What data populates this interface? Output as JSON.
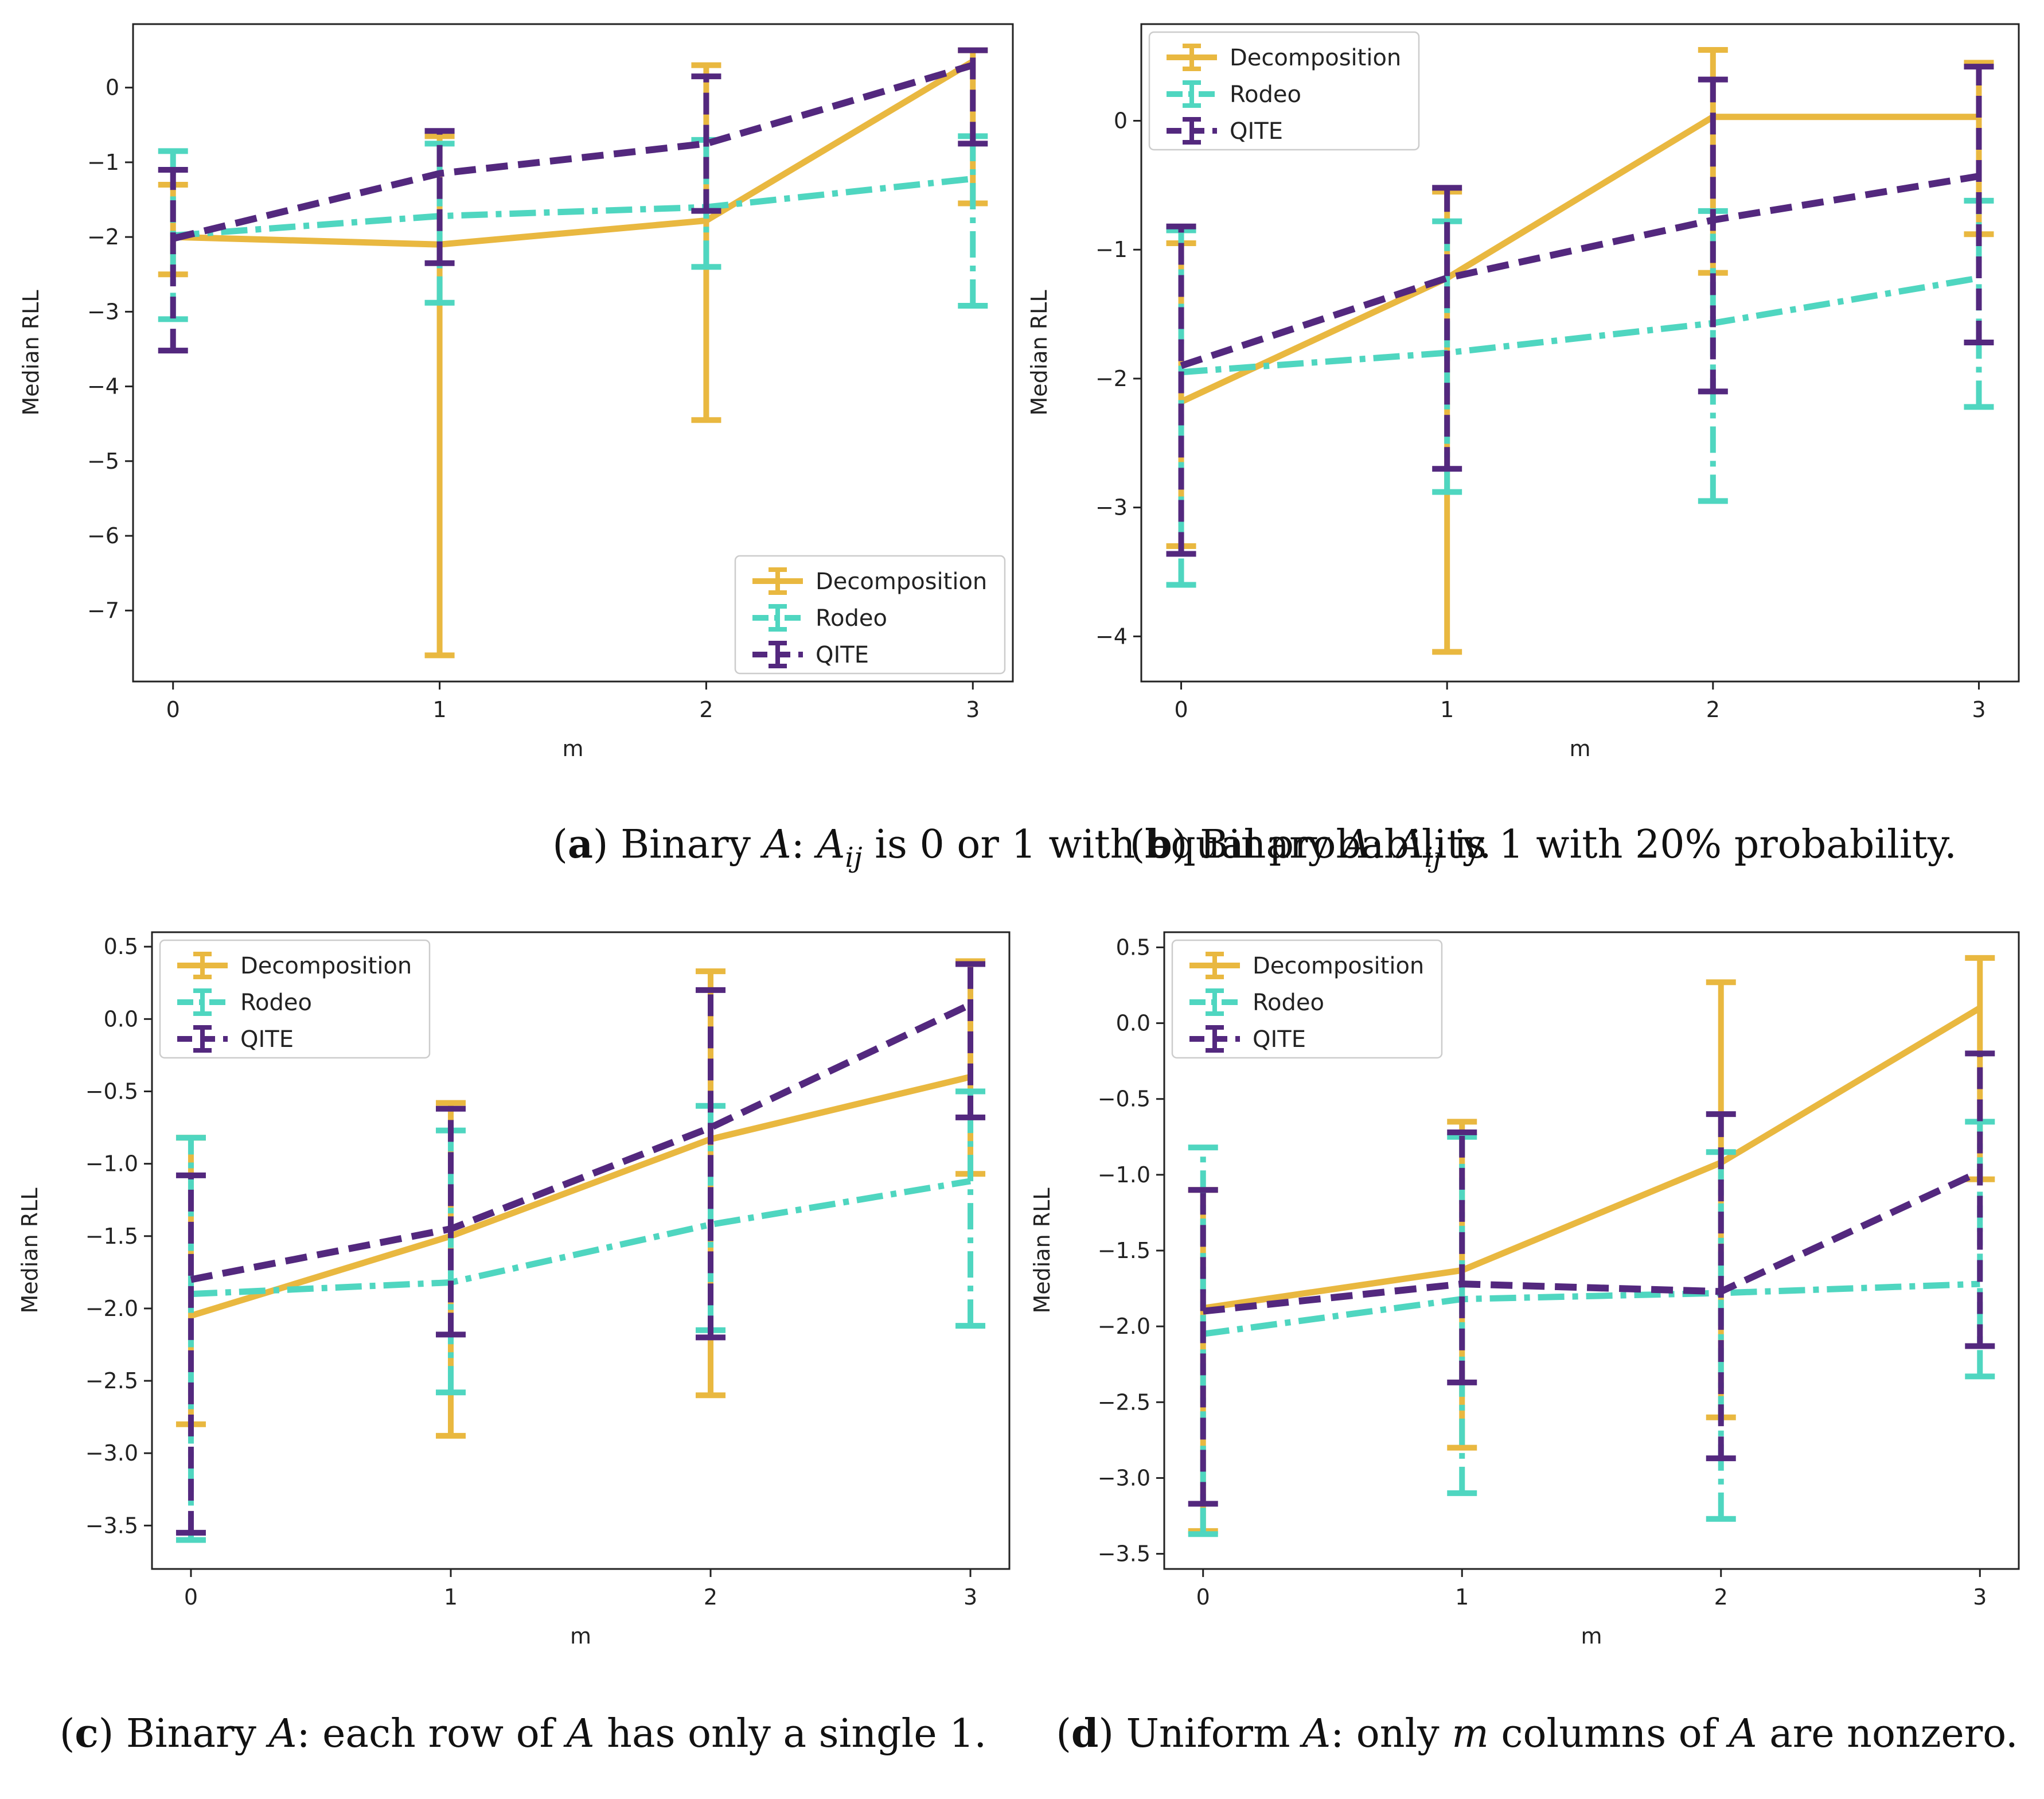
{
  "colors": {
    "Decomposition": "#E9B840",
    "Rodeo": "#4FD6C0",
    "QITE": "#53287E"
  },
  "legend_labels": [
    "Decomposition",
    "Rodeo",
    "QITE"
  ],
  "chart_data": [
    {
      "id": "a",
      "type": "line",
      "xlabel": "m",
      "ylabel": "Median RLL",
      "x": [
        0,
        1,
        2,
        3
      ],
      "xticks": [
        "0",
        "1",
        "2",
        "3"
      ],
      "ylim": [
        -7.95,
        0.85
      ],
      "yticks": [
        0,
        -1,
        -2,
        -3,
        -4,
        -5,
        -6,
        -7
      ],
      "ytick_labels": [
        "0",
        "−1",
        "−2",
        "−3",
        "−4",
        "−5",
        "−6",
        "−7"
      ],
      "legend_loc": "lower-right",
      "series": [
        {
          "name": "Decomposition",
          "values": [
            -2.0,
            -2.1,
            -1.78,
            0.35
          ],
          "low": [
            -2.5,
            -7.6,
            -4.45,
            -1.55
          ],
          "high": [
            -1.3,
            -0.65,
            0.3,
            0.5
          ]
        },
        {
          "name": "Rodeo",
          "values": [
            -1.98,
            -1.72,
            -1.6,
            -1.22
          ],
          "low": [
            -3.1,
            -2.88,
            -2.4,
            -2.92
          ],
          "high": [
            -0.85,
            -0.75,
            -0.7,
            -0.65
          ]
        },
        {
          "name": "QITE",
          "values": [
            -2.02,
            -1.15,
            -0.75,
            0.3
          ],
          "low": [
            -3.52,
            -2.35,
            -1.65,
            -0.75
          ],
          "high": [
            -1.1,
            -0.58,
            0.15,
            0.5
          ]
        }
      ],
      "caption": {
        "letter": "a",
        "pre": " Binary ",
        "var": "A",
        "mid": ": ",
        "var2": "A",
        "sub": "ij",
        "post": " is 0 or 1 with equal probability."
      }
    },
    {
      "id": "b",
      "type": "line",
      "xlabel": "m",
      "ylabel": "Median RLL",
      "x": [
        0,
        1,
        2,
        3
      ],
      "xticks": [
        "0",
        "1",
        "2",
        "3"
      ],
      "ylim": [
        -4.35,
        0.75
      ],
      "yticks": [
        0,
        -1,
        -2,
        -3,
        -4
      ],
      "ytick_labels": [
        "0",
        "−1",
        "−2",
        "−3",
        "−4"
      ],
      "legend_loc": "upper-left",
      "series": [
        {
          "name": "Decomposition",
          "values": [
            -2.18,
            -1.22,
            0.03,
            0.03
          ],
          "low": [
            -3.3,
            -4.12,
            -1.18,
            -0.88
          ],
          "high": [
            -0.95,
            -0.55,
            0.55,
            0.45
          ]
        },
        {
          "name": "Rodeo",
          "values": [
            -1.95,
            -1.8,
            -1.57,
            -1.22
          ],
          "low": [
            -3.6,
            -2.88,
            -2.95,
            -2.22
          ],
          "high": [
            -0.85,
            -0.78,
            -0.7,
            -0.62
          ]
        },
        {
          "name": "QITE",
          "values": [
            -1.9,
            -1.22,
            -0.77,
            -0.43
          ],
          "low": [
            -3.36,
            -2.7,
            -2.1,
            -1.72
          ],
          "high": [
            -0.82,
            -0.52,
            0.32,
            0.42
          ]
        }
      ],
      "caption": {
        "letter": "b",
        "pre": " Binary ",
        "var": "A",
        "mid": ": ",
        "var2": "A",
        "sub": "ij",
        "post": " is 1 with 20% probability."
      }
    },
    {
      "id": "c",
      "type": "line",
      "xlabel": "m",
      "ylabel": "Median RLL",
      "x": [
        0,
        1,
        2,
        3
      ],
      "xticks": [
        "0",
        "1",
        "2",
        "3"
      ],
      "ylim": [
        -3.8,
        0.6
      ],
      "yticks": [
        0.5,
        0.0,
        -0.5,
        -1.0,
        -1.5,
        -2.0,
        -2.5,
        -3.0,
        -3.5
      ],
      "ytick_labels": [
        "0.5",
        "0.0",
        "−0.5",
        "−1.0",
        "−1.5",
        "−2.0",
        "−2.5",
        "−3.0",
        "−3.5"
      ],
      "legend_loc": "upper-left",
      "series": [
        {
          "name": "Decomposition",
          "values": [
            -2.05,
            -1.5,
            -0.83,
            -0.4
          ],
          "low": [
            -2.8,
            -2.88,
            -2.6,
            -1.07
          ],
          "high": [
            -0.82,
            -0.58,
            0.33,
            0.4
          ]
        },
        {
          "name": "Rodeo",
          "values": [
            -1.9,
            -1.82,
            -1.42,
            -1.12
          ],
          "low": [
            -3.6,
            -2.58,
            -2.15,
            -2.12
          ],
          "high": [
            -0.82,
            -0.77,
            -0.6,
            -0.5
          ]
        },
        {
          "name": "QITE",
          "values": [
            -1.8,
            -1.45,
            -0.75,
            0.1
          ],
          "low": [
            -3.55,
            -2.18,
            -2.2,
            -0.68
          ],
          "high": [
            -1.08,
            -0.62,
            0.2,
            0.38
          ]
        }
      ],
      "caption": {
        "letter": "c",
        "pre": " Binary ",
        "var": "A",
        "mid": ": each row of ",
        "var2": "A",
        "sub": "",
        "post": " has only a single 1."
      }
    },
    {
      "id": "d",
      "type": "line",
      "xlabel": "m",
      "ylabel": "Median RLL",
      "x": [
        0,
        1,
        2,
        3
      ],
      "xticks": [
        "0",
        "1",
        "2",
        "3"
      ],
      "ylim": [
        -3.6,
        0.6
      ],
      "yticks": [
        0.5,
        0.0,
        -0.5,
        -1.0,
        -1.5,
        -2.0,
        -2.5,
        -3.0,
        -3.5
      ],
      "ytick_labels": [
        "0.5",
        "0.0",
        "−0.5",
        "−1.0",
        "−1.5",
        "−2.0",
        "−2.5",
        "−3.0",
        "−3.5"
      ],
      "legend_loc": "upper-left",
      "series": [
        {
          "name": "Decomposition",
          "values": [
            -1.88,
            -1.63,
            -0.92,
            0.1
          ],
          "low": [
            -3.35,
            -2.8,
            -2.6,
            -1.03
          ],
          "high": [
            -1.1,
            -0.65,
            0.27,
            0.43
          ]
        },
        {
          "name": "Rodeo",
          "values": [
            -2.05,
            -1.82,
            -1.78,
            -1.72
          ],
          "low": [
            -3.37,
            -3.1,
            -3.27,
            -2.33
          ],
          "high": [
            -0.82,
            -0.75,
            -0.85,
            -0.65
          ]
        },
        {
          "name": "QITE",
          "values": [
            -1.9,
            -1.72,
            -1.77,
            -0.98
          ],
          "low": [
            -3.17,
            -2.37,
            -2.87,
            -2.13
          ],
          "high": [
            -1.1,
            -0.72,
            -0.6,
            -0.2
          ]
        }
      ],
      "caption": {
        "letter": "d",
        "pre": " Uniform ",
        "var": "A",
        "mid": ": only ",
        "var_m": "m",
        "mid2": " columns of ",
        "var2": "A",
        "sub": "",
        "post": " are nonzero."
      }
    }
  ]
}
